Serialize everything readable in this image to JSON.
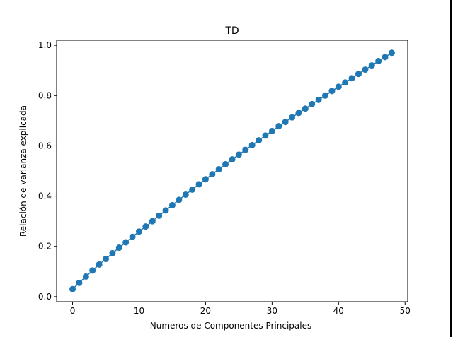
{
  "chart_data": {
    "type": "line",
    "title": "TD",
    "xlabel": "Numeros de Componentes Principales",
    "ylabel": "Relación de varianza explicada",
    "xlim": [
      -2.4,
      50.4
    ],
    "ylim": [
      -0.02,
      1.02
    ],
    "xticks": [
      0,
      10,
      20,
      30,
      40,
      50
    ],
    "xtick_labels": [
      "0",
      "10",
      "20",
      "30",
      "40",
      "50"
    ],
    "yticks": [
      0.0,
      0.2,
      0.4,
      0.6,
      0.8,
      1.0
    ],
    "ytick_labels": [
      "0.0",
      "0.2",
      "0.4",
      "0.6",
      "0.8",
      "1.0"
    ],
    "grid": false,
    "marker": "circle",
    "color": "#1f77b4",
    "series": [
      {
        "x": [
          0,
          1,
          2,
          3,
          4,
          5,
          6,
          7,
          8,
          9,
          10,
          11,
          12,
          13,
          14,
          15,
          16,
          17,
          18,
          19,
          20,
          21,
          22,
          23,
          24,
          25,
          26,
          27,
          28,
          29,
          30,
          31,
          32,
          33,
          34,
          35,
          36,
          37,
          38,
          39,
          40,
          41,
          42,
          43,
          44,
          45,
          46,
          47,
          48
        ],
        "y": [
          0.03,
          0.055,
          0.08,
          0.104,
          0.128,
          0.15,
          0.173,
          0.195,
          0.216,
          0.238,
          0.259,
          0.279,
          0.3,
          0.322,
          0.343,
          0.364,
          0.385,
          0.406,
          0.426,
          0.447,
          0.467,
          0.487,
          0.507,
          0.527,
          0.546,
          0.565,
          0.584,
          0.603,
          0.622,
          0.641,
          0.659,
          0.678,
          0.695,
          0.713,
          0.731,
          0.748,
          0.766,
          0.783,
          0.8,
          0.818,
          0.835,
          0.852,
          0.869,
          0.886,
          0.903,
          0.92,
          0.937,
          0.953,
          0.97
        ]
      }
    ]
  }
}
